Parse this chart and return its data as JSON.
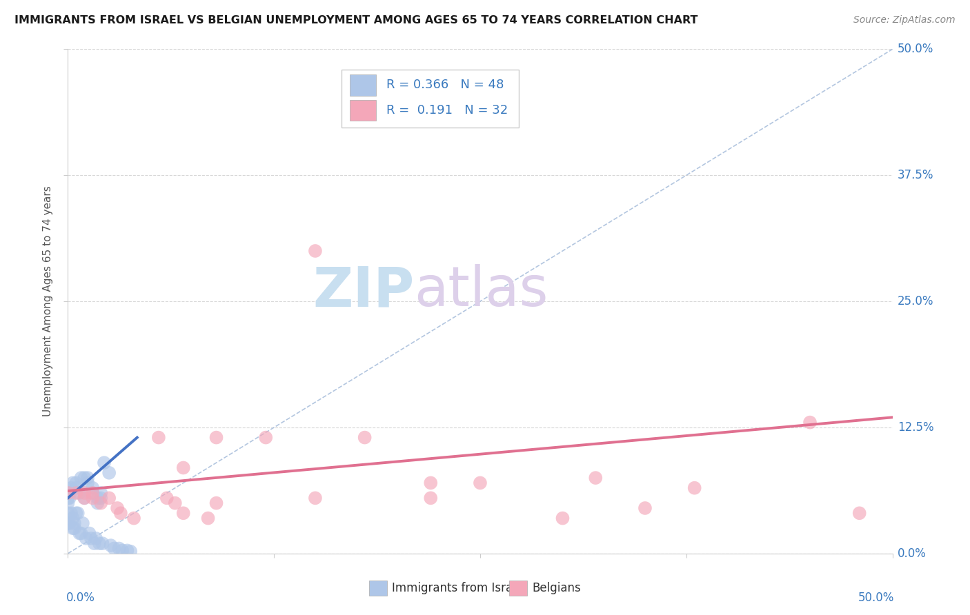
{
  "title": "IMMIGRANTS FROM ISRAEL VS BELGIAN UNEMPLOYMENT AMONG AGES 65 TO 74 YEARS CORRELATION CHART",
  "source": "Source: ZipAtlas.com",
  "ylabel": "Unemployment Among Ages 65 to 74 years",
  "ytick_labels": [
    "0.0%",
    "12.5%",
    "25.0%",
    "37.5%",
    "50.0%"
  ],
  "ytick_values": [
    0.0,
    0.125,
    0.25,
    0.375,
    0.5
  ],
  "xlim": [
    0.0,
    0.5
  ],
  "ylim": [
    0.0,
    0.5
  ],
  "legend_r_israel": "0.366",
  "legend_n_israel": "48",
  "legend_r_belgians": "0.191",
  "legend_n_belgians": "32",
  "color_israel": "#aec6e8",
  "color_belgians": "#f4a7b9",
  "color_trendline_israel": "#4472c4",
  "color_trendline_belgians": "#e07090",
  "color_diagonal": "#a0b8d8",
  "israel_x": [
    0.0,
    0.0,
    0.0,
    0.0,
    0.0,
    0.001,
    0.001,
    0.002,
    0.002,
    0.003,
    0.003,
    0.003,
    0.004,
    0.004,
    0.005,
    0.005,
    0.005,
    0.006,
    0.007,
    0.007,
    0.008,
    0.008,
    0.009,
    0.01,
    0.01,
    0.011,
    0.012,
    0.012,
    0.013,
    0.014,
    0.015,
    0.015,
    0.016,
    0.017,
    0.018,
    0.018,
    0.019,
    0.02,
    0.02,
    0.021,
    0.022,
    0.025,
    0.026,
    0.028,
    0.031,
    0.033,
    0.036,
    0.038
  ],
  "israel_y": [
    0.03,
    0.04,
    0.05,
    0.055,
    0.06,
    0.03,
    0.055,
    0.04,
    0.065,
    0.025,
    0.035,
    0.07,
    0.025,
    0.03,
    0.04,
    0.065,
    0.07,
    0.04,
    0.02,
    0.06,
    0.02,
    0.075,
    0.03,
    0.055,
    0.075,
    0.015,
    0.07,
    0.075,
    0.02,
    0.015,
    0.06,
    0.065,
    0.01,
    0.015,
    0.05,
    0.055,
    0.01,
    0.055,
    0.06,
    0.01,
    0.09,
    0.08,
    0.008,
    0.005,
    0.005,
    0.003,
    0.003,
    0.002
  ],
  "belgians_x": [
    0.0,
    0.005,
    0.01,
    0.01,
    0.015,
    0.015,
    0.02,
    0.025,
    0.03,
    0.032,
    0.04,
    0.055,
    0.06,
    0.065,
    0.07,
    0.07,
    0.085,
    0.09,
    0.12,
    0.15,
    0.18,
    0.22,
    0.25,
    0.3,
    0.32,
    0.38,
    0.45,
    0.15,
    0.09,
    0.22,
    0.35,
    0.48
  ],
  "belgians_y": [
    0.06,
    0.06,
    0.055,
    0.06,
    0.055,
    0.06,
    0.05,
    0.055,
    0.045,
    0.04,
    0.035,
    0.115,
    0.055,
    0.05,
    0.04,
    0.085,
    0.035,
    0.05,
    0.115,
    0.055,
    0.115,
    0.07,
    0.07,
    0.035,
    0.075,
    0.065,
    0.13,
    0.3,
    0.115,
    0.055,
    0.045,
    0.04
  ],
  "trendline_israel_x0": 0.0,
  "trendline_israel_y0": 0.055,
  "trendline_israel_x1": 0.042,
  "trendline_israel_y1": 0.115,
  "trendline_belgians_x0": 0.0,
  "trendline_belgians_y0": 0.062,
  "trendline_belgians_x1": 0.5,
  "trendline_belgians_y1": 0.135
}
